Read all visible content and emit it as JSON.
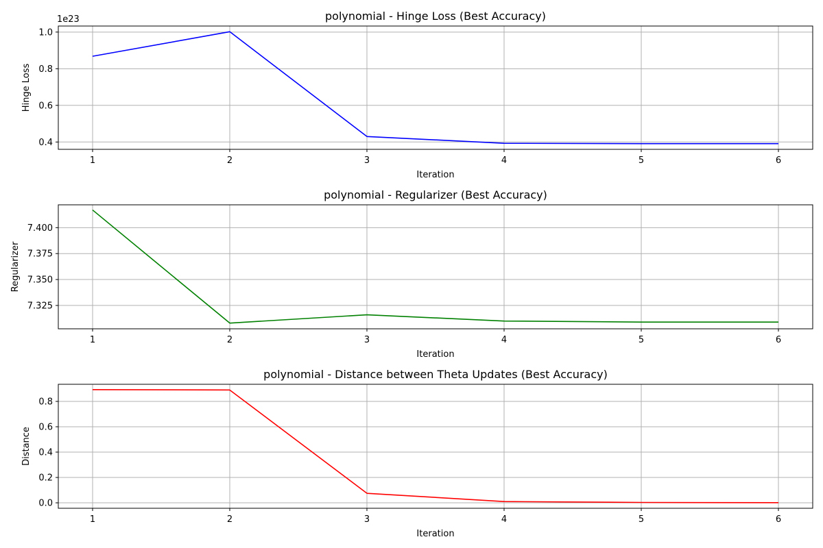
{
  "chart_data": [
    {
      "type": "line",
      "title": "polynomial - Hinge Loss (Best Accuracy)",
      "xlabel": "Iteration",
      "ylabel": "Hinge Loss",
      "y_offset_label": "1e23",
      "color": "#0000ff",
      "grid": true,
      "x": [
        1,
        2,
        3,
        4,
        5,
        6
      ],
      "xticks": [
        1,
        2,
        3,
        4,
        5,
        6
      ],
      "y": [
        0.868,
        1.002,
        0.43,
        0.393,
        0.391,
        0.391
      ],
      "yticks": [
        0.4,
        0.6,
        0.8,
        1.0
      ],
      "ytick_labels": [
        "0.4",
        "0.6",
        "0.8",
        "1.0"
      ],
      "xlim": [
        0.75,
        6.25
      ],
      "ylim": [
        0.36,
        1.033
      ]
    },
    {
      "type": "line",
      "title": "polynomial - Regularizer (Best Accuracy)",
      "xlabel": "Iteration",
      "ylabel": "Regularizer",
      "y_offset_label": "",
      "color": "#008000",
      "grid": true,
      "x": [
        1,
        2,
        3,
        4,
        5,
        6
      ],
      "xticks": [
        1,
        2,
        3,
        4,
        5,
        6
      ],
      "y": [
        7.417,
        7.308,
        7.316,
        7.31,
        7.309,
        7.309
      ],
      "yticks": [
        7.325,
        7.35,
        7.375,
        7.4
      ],
      "ytick_labels": [
        "7.325",
        "7.350",
        "7.375",
        "7.400"
      ],
      "xlim": [
        0.75,
        6.25
      ],
      "ylim": [
        7.3025,
        7.422
      ]
    },
    {
      "type": "line",
      "title": "polynomial - Distance between Theta Updates (Best Accuracy)",
      "xlabel": "Iteration",
      "ylabel": "Distance",
      "y_offset_label": "",
      "color": "#ff0000",
      "grid": true,
      "x": [
        1,
        2,
        3,
        4,
        5,
        6
      ],
      "xticks": [
        1,
        2,
        3,
        4,
        5,
        6
      ],
      "y": [
        0.893,
        0.89,
        0.075,
        0.01,
        0.003,
        0.001
      ],
      "yticks": [
        0.0,
        0.2,
        0.4,
        0.6,
        0.8
      ],
      "ytick_labels": [
        "0.0",
        "0.2",
        "0.4",
        "0.6",
        "0.8"
      ],
      "xlim": [
        0.75,
        6.25
      ],
      "ylim": [
        -0.043,
        0.935
      ]
    }
  ]
}
